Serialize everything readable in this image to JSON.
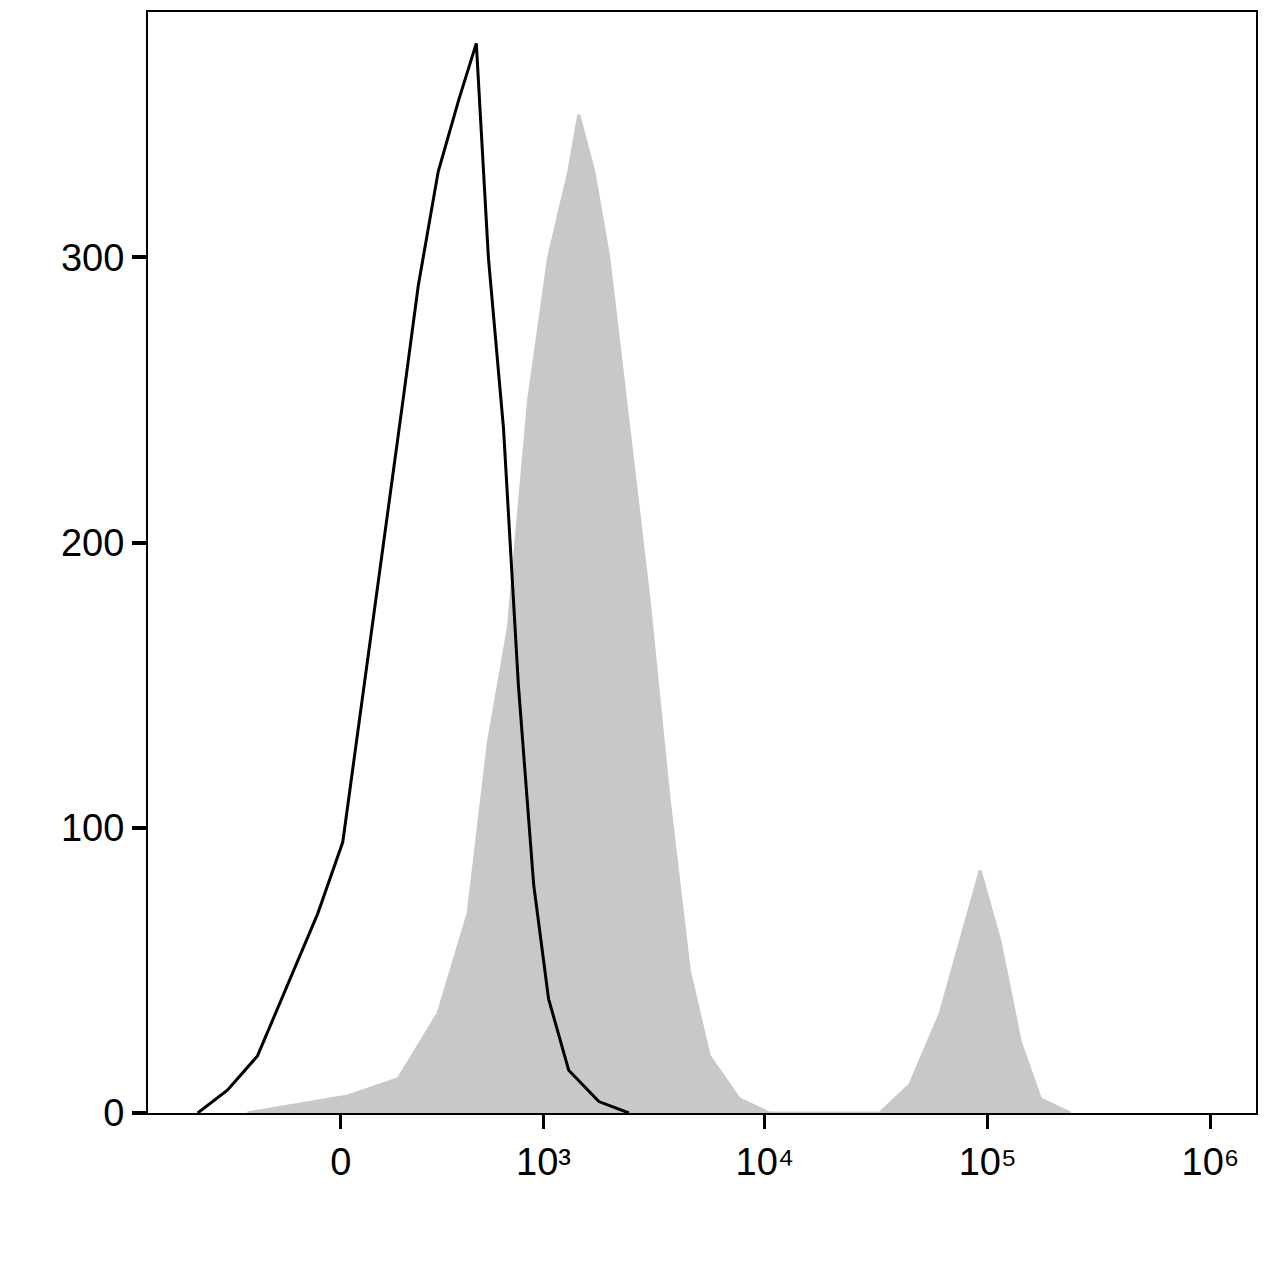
{
  "chart_data": {
    "type": "line",
    "series": [
      {
        "type": "area",
        "color": "#c8c8c8",
        "x": [
          -281,
          -115,
          18,
          157,
          296,
          432,
          547,
          683,
          852,
          1055,
          1305,
          1450,
          1700,
          1985,
          2448,
          3017,
          3712,
          4575,
          5625,
          7675,
          10475,
          32750,
          44750,
          61250,
          75250,
          92500,
          113750,
          140000,
          172500,
          235250
        ],
        "values": [
          0,
          3,
          6,
          12,
          35,
          70,
          130,
          170,
          250,
          300,
          330,
          350,
          330,
          300,
          240,
          180,
          110,
          50,
          20,
          5,
          0,
          0,
          10,
          35,
          60,
          85,
          60,
          25,
          5,
          0
        ]
      },
      {
        "type": "line",
        "color": "#000000",
        "x": [
          -520,
          -365,
          -243,
          -144,
          -60,
          5,
          71,
          127,
          172,
          222,
          296,
          385,
          476,
          547,
          648,
          763,
          900,
          1055,
          1305,
          1790,
          2448
        ],
        "values": [
          0,
          8,
          20,
          45,
          70,
          95,
          160,
          210,
          250,
          290,
          330,
          355,
          375,
          300,
          240,
          150,
          80,
          40,
          15,
          4,
          0
        ]
      }
    ],
    "xlim": [
      -900,
      1600000
    ],
    "xticks": [
      0,
      {
        "value": 1000,
        "label": "10³"
      },
      {
        "value": 10000,
        "label": "10⁴"
      },
      {
        "value": 100000,
        "label": "10⁵"
      },
      {
        "value": 1000000,
        "label": "10⁶"
      }
    ],
    "ylim": [
      0,
      386
    ],
    "yticks": [
      0,
      100,
      200,
      300
    ],
    "grid": false
  }
}
